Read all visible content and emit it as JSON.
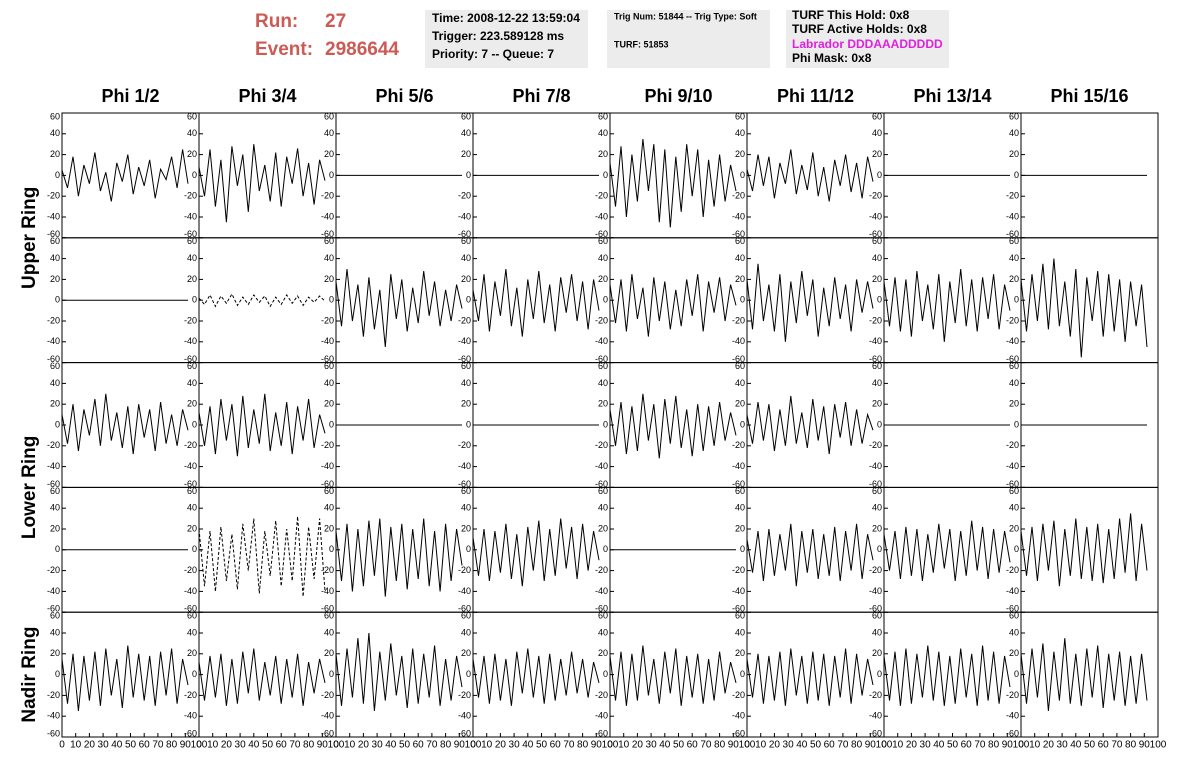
{
  "header": {
    "run_label": "Run:",
    "run": "27",
    "event_label": "Event:",
    "event": "2986644",
    "time": "Time: 2008-12-22 13:59:04",
    "trigger": "Trigger: 223.589128 ms",
    "priority": "Priority: 7 -- Queue: 7",
    "trig_num": "Trig Num: 51844 -- Trig Type: Soft",
    "turf": "TURF: 51853",
    "turf_hold": "TURF This Hold: 0x8",
    "turf_active": "TURF Active Holds: 0x8",
    "labrador": "Labrador DDDAAADDDDD",
    "phi_mask": "Phi Mask: 0x8"
  },
  "chart_data": {
    "type": "line",
    "columns": [
      "Phi 1/2",
      "Phi 3/4",
      "Phi 5/6",
      "Phi 7/8",
      "Phi 9/10",
      "Phi 11/12",
      "Phi 13/14",
      "Phi 15/16"
    ],
    "row_labels": [
      "Upper Ring",
      "Lower Ring",
      "Nadir Ring"
    ],
    "color": "#000000",
    "xlim": [
      0,
      100
    ],
    "xticks": [
      0,
      10,
      20,
      30,
      40,
      50,
      60,
      70,
      80,
      90,
      100
    ],
    "ylim": [
      -60,
      60
    ],
    "yticks": [
      -60,
      -40,
      -20,
      0,
      20,
      40,
      60
    ],
    "x": [
      0,
      4,
      8,
      12,
      16,
      20,
      24,
      28,
      32,
      36,
      40,
      44,
      48,
      52,
      56,
      60,
      64,
      68,
      72,
      76,
      80,
      84,
      88,
      92
    ],
    "panels": [
      [
        {
          "values": [
            5,
            -12,
            18,
            -20,
            10,
            -8,
            22,
            -15,
            3,
            -25,
            12,
            -6,
            20,
            -18,
            8,
            -10,
            15,
            -22,
            6,
            -4,
            18,
            -12,
            25,
            -8
          ]
        },
        {
          "values": [
            8,
            -20,
            25,
            -30,
            15,
            -45,
            28,
            -10,
            20,
            -35,
            30,
            -15,
            10,
            -25,
            22,
            -30,
            18,
            -8,
            26,
            -20,
            12,
            -28,
            15,
            -5
          ]
        },
        {
          "values": [
            0,
            0,
            0,
            0,
            0,
            0,
            0,
            0,
            0,
            0,
            0,
            0,
            0,
            0,
            0,
            0,
            0,
            0,
            0,
            0,
            0,
            0,
            0,
            0
          ]
        },
        {
          "values": [
            0,
            0,
            0,
            0,
            0,
            0,
            0,
            0,
            0,
            0,
            0,
            0,
            0,
            0,
            0,
            0,
            0,
            0,
            0,
            0,
            0,
            0,
            0,
            0
          ]
        },
        {
          "values": [
            12,
            -30,
            28,
            -40,
            20,
            -25,
            35,
            -15,
            30,
            -45,
            25,
            -50,
            18,
            -35,
            30,
            -20,
            25,
            -40,
            15,
            -30,
            20,
            -25,
            10,
            -15
          ]
        },
        {
          "values": [
            6,
            -15,
            20,
            -10,
            18,
            -22,
            12,
            -8,
            25,
            -18,
            10,
            -14,
            22,
            -20,
            8,
            -25,
            15,
            -10,
            20,
            -16,
            12,
            -22,
            18,
            -6
          ]
        },
        {
          "values": [
            0,
            0,
            0,
            0,
            0,
            0,
            0,
            0,
            0,
            0,
            0,
            0,
            0,
            0,
            0,
            0,
            0,
            0,
            0,
            0,
            0,
            0,
            0,
            0
          ]
        },
        {
          "values": [
            0,
            0,
            0,
            0,
            0,
            0,
            0,
            0,
            0,
            0,
            0,
            0,
            0,
            0,
            0,
            0,
            0,
            0,
            0,
            0,
            0,
            0,
            0,
            0
          ]
        }
      ],
      [
        {
          "values": [
            0,
            0,
            0,
            0,
            0,
            0,
            0,
            0,
            0,
            0,
            0,
            0,
            0,
            0,
            0,
            0,
            0,
            0,
            0,
            0,
            0,
            0,
            0,
            0
          ]
        },
        {
          "values": [
            2,
            -4,
            5,
            -6,
            4,
            -3,
            6,
            -5,
            3,
            -4,
            5,
            -2,
            4,
            -6,
            3,
            -4,
            5,
            -3,
            4,
            -5,
            3,
            -2,
            4,
            -1
          ],
          "dashed": true
        },
        {
          "values": [
            18,
            -25,
            30,
            -20,
            15,
            -35,
            22,
            -28,
            10,
            -45,
            25,
            -18,
            20,
            -30,
            12,
            -22,
            28,
            -15,
            18,
            -25,
            10,
            -20,
            15,
            -8
          ]
        },
        {
          "values": [
            10,
            -20,
            25,
            -30,
            18,
            -15,
            30,
            -25,
            12,
            -35,
            20,
            -18,
            28,
            -22,
            15,
            -30,
            22,
            -12,
            25,
            -20,
            18,
            -28,
            20,
            -10
          ]
        },
        {
          "values": [
            15,
            -22,
            20,
            -30,
            25,
            -18,
            12,
            -35,
            22,
            -20,
            18,
            -28,
            10,
            -25,
            20,
            -15,
            25,
            -30,
            18,
            -12,
            22,
            -20,
            15,
            -5
          ]
        },
        {
          "values": [
            20,
            -28,
            35,
            -20,
            15,
            -30,
            25,
            -40,
            18,
            -22,
            28,
            -15,
            20,
            -35,
            12,
            -25,
            22,
            -18,
            15,
            -30,
            20,
            -12,
            18,
            -8
          ]
        },
        {
          "values": [
            18,
            -25,
            22,
            -30,
            20,
            -35,
            28,
            -20,
            15,
            -28,
            25,
            -40,
            18,
            -22,
            30,
            -25,
            20,
            -30,
            22,
            -18,
            25,
            -28,
            15,
            -10
          ]
        },
        {
          "values": [
            20,
            -30,
            25,
            -20,
            35,
            -28,
            40,
            -25,
            18,
            -35,
            30,
            -55,
            22,
            -20,
            28,
            -35,
            25,
            -30,
            20,
            -40,
            18,
            -25,
            15,
            -45
          ]
        }
      ],
      [
        {
          "values": [
            10,
            -18,
            20,
            -25,
            15,
            -10,
            25,
            -20,
            30,
            -15,
            12,
            -22,
            18,
            -28,
            20,
            -12,
            15,
            -25,
            22,
            -18,
            10,
            -20,
            15,
            -5
          ]
        },
        {
          "values": [
            12,
            -20,
            18,
            -28,
            25,
            -15,
            20,
            -30,
            28,
            -22,
            15,
            -18,
            30,
            -25,
            12,
            -20,
            22,
            -28,
            18,
            -15,
            25,
            -22,
            10,
            -8
          ]
        },
        {
          "values": [
            0,
            0,
            0,
            0,
            0,
            0,
            0,
            0,
            0,
            0,
            0,
            0,
            0,
            0,
            0,
            0,
            0,
            0,
            0,
            0,
            0,
            0,
            0,
            0
          ]
        },
        {
          "values": [
            0,
            0,
            0,
            0,
            0,
            0,
            0,
            0,
            0,
            0,
            0,
            0,
            0,
            0,
            0,
            0,
            0,
            0,
            0,
            0,
            0,
            0,
            0,
            0
          ]
        },
        {
          "values": [
            15,
            -20,
            22,
            -28,
            18,
            -25,
            30,
            -15,
            20,
            -32,
            25,
            -18,
            28,
            -22,
            15,
            -30,
            20,
            -25,
            18,
            -20,
            22,
            -15,
            12,
            -10
          ]
        },
        {
          "values": [
            10,
            -18,
            22,
            -15,
            20,
            -25,
            15,
            -20,
            28,
            -18,
            12,
            -22,
            25,
            -15,
            18,
            -28,
            20,
            -12,
            22,
            -20,
            15,
            -18,
            10,
            -5
          ]
        },
        {
          "values": [
            0,
            0,
            0,
            0,
            0,
            0,
            0,
            0,
            0,
            0,
            0,
            0,
            0,
            0,
            0,
            0,
            0,
            0,
            0,
            0,
            0,
            0,
            0,
            0
          ]
        },
        {
          "values": [
            0,
            0,
            0,
            0,
            0,
            0,
            0,
            0,
            0,
            0,
            0,
            0,
            0,
            0,
            0,
            0,
            0,
            0,
            0,
            0,
            0,
            0,
            0,
            0
          ]
        }
      ],
      [
        {
          "values": [
            0,
            0,
            0,
            0,
            0,
            0,
            0,
            0,
            0,
            0,
            0,
            0,
            0,
            0,
            0,
            0,
            0,
            0,
            0,
            0,
            0,
            0,
            0,
            0
          ]
        },
        {
          "values": [
            20,
            -35,
            18,
            -40,
            22,
            -30,
            15,
            -38,
            25,
            -20,
            30,
            -42,
            18,
            -25,
            28,
            -35,
            20,
            -30,
            32,
            -45,
            22,
            -28,
            30,
            -40
          ],
          "dashed": true
        },
        {
          "values": [
            18,
            -30,
            25,
            -40,
            20,
            -35,
            28,
            -25,
            30,
            -45,
            22,
            -30,
            25,
            -38,
            20,
            -28,
            30,
            -35,
            18,
            -40,
            25,
            -30,
            20,
            -15
          ]
        },
        {
          "values": [
            12,
            -25,
            20,
            -30,
            18,
            -22,
            25,
            -28,
            15,
            -35,
            22,
            -20,
            28,
            -30,
            20,
            -25,
            30,
            -18,
            22,
            -28,
            25,
            -20,
            18,
            -10
          ]
        },
        {
          "values": [
            0,
            0,
            0,
            0,
            0,
            0,
            0,
            0,
            0,
            0,
            0,
            0,
            0,
            0,
            0,
            0,
            0,
            0,
            0,
            0,
            0,
            0,
            0,
            0
          ]
        },
        {
          "values": [
            10,
            -22,
            18,
            -30,
            20,
            -25,
            15,
            -20,
            25,
            -35,
            18,
            -22,
            20,
            -28,
            15,
            -25,
            22,
            -30,
            18,
            -20,
            25,
            -28,
            15,
            -10
          ]
        },
        {
          "values": [
            15,
            -20,
            18,
            -28,
            22,
            -25,
            20,
            -30,
            15,
            -22,
            25,
            -18,
            20,
            -30,
            18,
            -25,
            28,
            -20,
            22,
            -28,
            20,
            -22,
            18,
            -12
          ]
        },
        {
          "values": [
            18,
            -25,
            22,
            -30,
            25,
            -20,
            28,
            -35,
            20,
            -25,
            30,
            -28,
            22,
            -30,
            25,
            -32,
            20,
            -28,
            30,
            -22,
            35,
            -30,
            25,
            -20
          ]
        }
      ],
      [
        {
          "values": [
            15,
            -28,
            20,
            -35,
            18,
            -25,
            22,
            -30,
            25,
            -20,
            15,
            -32,
            28,
            -22,
            20,
            -25,
            18,
            -30,
            22,
            -20,
            25,
            -28,
            15,
            -10
          ]
        },
        {
          "values": [
            12,
            -25,
            18,
            -22,
            20,
            -30,
            15,
            -28,
            22,
            -18,
            25,
            -25,
            12,
            -20,
            18,
            -28,
            15,
            -22,
            20,
            -30,
            12,
            -18,
            15,
            -8
          ]
        },
        {
          "values": [
            20,
            -30,
            25,
            -22,
            35,
            -28,
            40,
            -35,
            22,
            -25,
            30,
            -20,
            18,
            -32,
            25,
            -28,
            20,
            -22,
            28,
            -30,
            15,
            -25,
            18,
            -12
          ]
        },
        {
          "values": [
            15,
            -22,
            18,
            -28,
            20,
            -25,
            15,
            -30,
            22,
            -18,
            25,
            -22,
            18,
            -28,
            20,
            -25,
            15,
            -20,
            22,
            -18,
            15,
            -22,
            12,
            -8
          ]
        },
        {
          "values": [
            18,
            -25,
            22,
            -30,
            20,
            -25,
            28,
            -20,
            15,
            -28,
            22,
            -18,
            25,
            -30,
            18,
            -22,
            20,
            -28,
            15,
            -25,
            22,
            -18,
            12,
            -8
          ]
        },
        {
          "values": [
            15,
            -22,
            20,
            -28,
            18,
            -25,
            22,
            -30,
            25,
            -20,
            18,
            -28,
            22,
            -25,
            20,
            -30,
            18,
            -22,
            25,
            -28,
            20,
            -20,
            15,
            -10
          ]
        },
        {
          "values": [
            18,
            -25,
            22,
            -30,
            25,
            -28,
            20,
            -22,
            28,
            -25,
            22,
            -30,
            18,
            -28,
            25,
            -22,
            20,
            -30,
            28,
            -25,
            22,
            -28,
            18,
            -12
          ]
        },
        {
          "values": [
            20,
            -28,
            25,
            -22,
            30,
            -35,
            22,
            -25,
            35,
            -28,
            20,
            -30,
            25,
            -22,
            28,
            -32,
            20,
            -25,
            22,
            -30,
            18,
            -28,
            20,
            -25
          ]
        }
      ]
    ]
  }
}
